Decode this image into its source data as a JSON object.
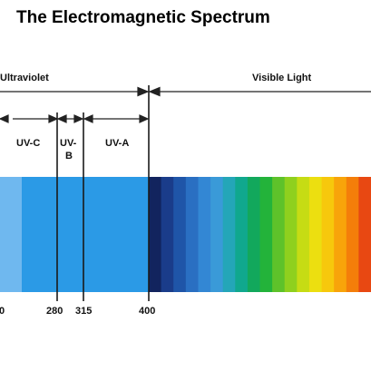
{
  "title": "The Electromagnetic Spectrum",
  "regions": [
    {
      "id": "ultraviolet",
      "label": "Ultraviolet"
    },
    {
      "id": "visible",
      "label": "Visible Light"
    }
  ],
  "uv_bands": [
    {
      "id": "uvc",
      "label": "UV-C"
    },
    {
      "id": "uvb",
      "label_line1": "UV-",
      "label_line2": "B"
    },
    {
      "id": "uva",
      "label": "UV-A"
    }
  ],
  "ticks": [
    "0",
    "280",
    "315",
    "400"
  ],
  "colors": {
    "uv_light": "#6fb8ef",
    "uv_main": "#2b9ae6",
    "uv_right": "#1f8fe0",
    "line": "#222222"
  },
  "spectrum_colors": [
    "#12245e",
    "#1a3c8a",
    "#1f55a8",
    "#2a6fc2",
    "#3387d4",
    "#3a9ad8",
    "#24a6b8",
    "#10a88e",
    "#12a85c",
    "#23b33a",
    "#5ec22a",
    "#8fd01e",
    "#c6dc14",
    "#ecdf10",
    "#f7c80c",
    "#f8a40a",
    "#f47e0a",
    "#e84812"
  ]
}
